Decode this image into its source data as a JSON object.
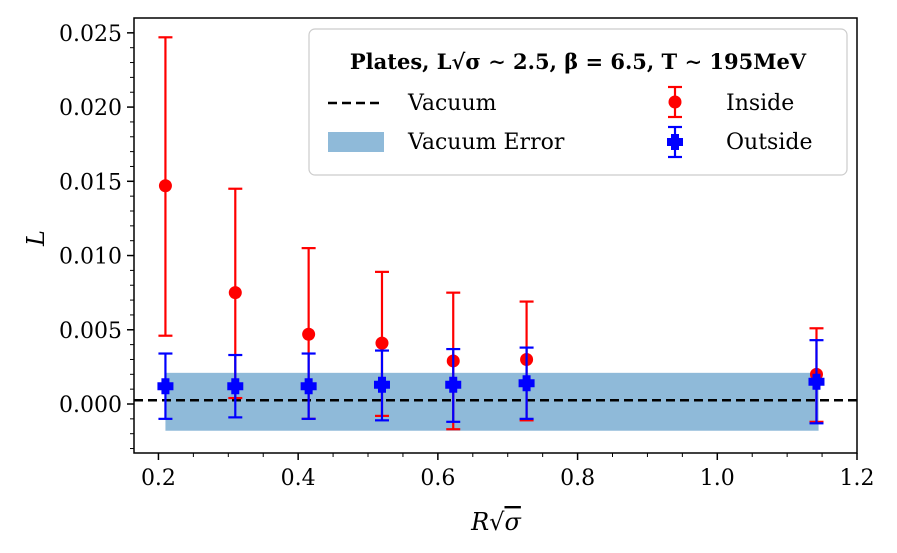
{
  "chart_data": {
    "type": "scatter",
    "title": "",
    "xlabel": "R√σ",
    "ylabel": "L",
    "xlim": [
      0.165,
      1.2
    ],
    "ylim": [
      -0.0033,
      0.026
    ],
    "x_ticks": [
      0.2,
      0.4,
      0.6,
      0.8,
      1.0,
      1.2
    ],
    "x_tick_labels": [
      "0.2",
      "0.4",
      "0.6",
      "0.8",
      "1.0",
      "1.2"
    ],
    "y_ticks": [
      0.0,
      0.005,
      0.01,
      0.015,
      0.02,
      0.025
    ],
    "y_tick_labels": [
      "0.000",
      "0.005",
      "0.010",
      "0.015",
      "0.020",
      "0.025"
    ],
    "grid": false,
    "legend": {
      "placement": "top-right",
      "title": "Plates, L√σ ∼ 2.5, β = 6.5, T ∼ 195MeV",
      "entries": {
        "vacuum": "Vacuum",
        "vacuum_error": "Vacuum Error",
        "inside": "Inside",
        "outside": "Outside"
      }
    },
    "vacuum": {
      "value": 0.00025,
      "error_low": -0.0018,
      "error_high": 0.0021,
      "x_range": [
        0.21,
        1.145
      ]
    },
    "series": [
      {
        "name": "Inside",
        "color": "#ff0000",
        "marker": "circle",
        "points": [
          {
            "x": 0.21,
            "y": 0.0147,
            "lo": 0.0046,
            "hi": 0.0247
          },
          {
            "x": 0.31,
            "y": 0.0075,
            "lo": 0.0004,
            "hi": 0.0145
          },
          {
            "x": 0.415,
            "y": 0.0047,
            "lo": -0.001,
            "hi": 0.0105
          },
          {
            "x": 0.52,
            "y": 0.0041,
            "lo": -0.0008,
            "hi": 0.0089
          },
          {
            "x": 0.622,
            "y": 0.0029,
            "lo": -0.0017,
            "hi": 0.0075
          },
          {
            "x": 0.727,
            "y": 0.003,
            "lo": -0.0011,
            "hi": 0.0069
          },
          {
            "x": 1.142,
            "y": 0.002,
            "lo": -0.0012,
            "hi": 0.0051
          }
        ]
      },
      {
        "name": "Outside",
        "color": "#0000ff",
        "marker": "plus",
        "points": [
          {
            "x": 0.21,
            "y": 0.0012,
            "lo": -0.001,
            "hi": 0.0034
          },
          {
            "x": 0.31,
            "y": 0.0012,
            "lo": -0.0009,
            "hi": 0.0033
          },
          {
            "x": 0.415,
            "y": 0.0012,
            "lo": -0.001,
            "hi": 0.0034
          },
          {
            "x": 0.52,
            "y": 0.0013,
            "lo": -0.0011,
            "hi": 0.0036
          },
          {
            "x": 0.622,
            "y": 0.0013,
            "lo": -0.0012,
            "hi": 0.0037
          },
          {
            "x": 0.727,
            "y": 0.0014,
            "lo": -0.001,
            "hi": 0.0038
          },
          {
            "x": 1.142,
            "y": 0.0015,
            "lo": -0.0013,
            "hi": 0.0043
          }
        ]
      }
    ],
    "colors": {
      "vacuum_band": "#8fbad9",
      "vacuum_line": "#000000"
    }
  }
}
